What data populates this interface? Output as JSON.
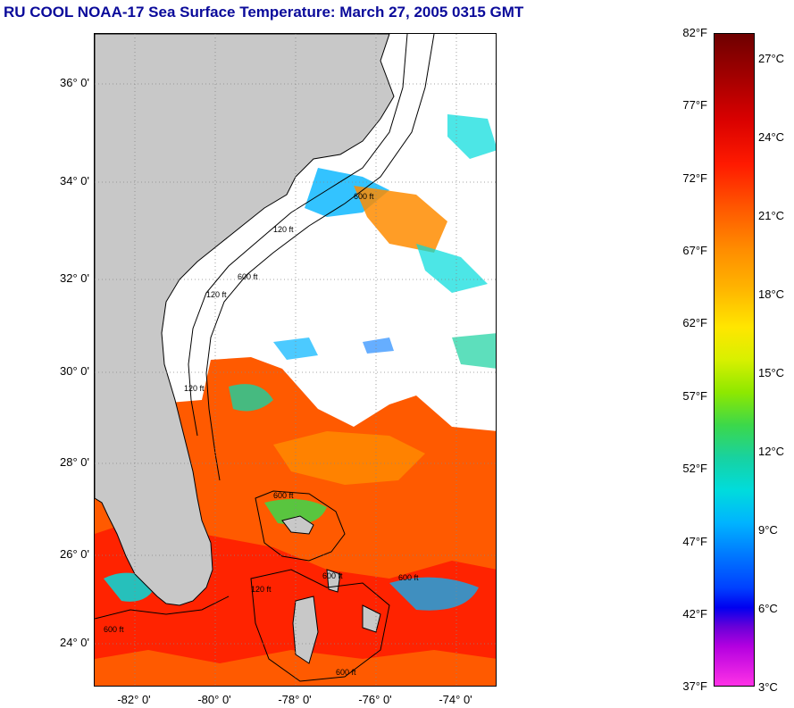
{
  "title": "RU COOL  NOAA-17  Sea Surface Temperature:  March 27, 2005 0315 GMT",
  "map": {
    "lat_labels": [
      "36° 0'",
      "34° 0'",
      "32° 0'",
      "30° 0'",
      "28° 0'",
      "26° 0'",
      "24° 0'"
    ],
    "lon_labels": [
      "-82° 0'",
      "-80° 0'",
      "-78° 0'",
      "-76° 0'",
      "-74° 0'"
    ],
    "contour_labels": [
      "120 ft",
      "600 ft",
      "120 ft",
      "600 ft",
      "120 ft",
      "600 ft",
      "600 ft",
      "120 ft",
      "600 ft",
      "600 ft",
      "600 ft"
    ],
    "colors": {
      "land": "#c8c8c8",
      "cloud": "#ffffff",
      "warm": "#ff5a00",
      "hot": "#ff1a00",
      "cool": "#00dcdc",
      "cold": "#0078ff",
      "contour": "#000000"
    }
  },
  "colorbar": {
    "fahrenheit_labels": [
      "82°F",
      "77°F",
      "72°F",
      "67°F",
      "62°F",
      "57°F",
      "52°F",
      "47°F",
      "42°F",
      "37°F"
    ],
    "celsius_labels": [
      "27°C",
      "24°C",
      "21°C",
      "18°C",
      "15°C",
      "12°C",
      "9°C",
      "6°C",
      "3°C"
    ],
    "range_f": [
      37,
      82
    ],
    "range_c": [
      3,
      28
    ]
  }
}
